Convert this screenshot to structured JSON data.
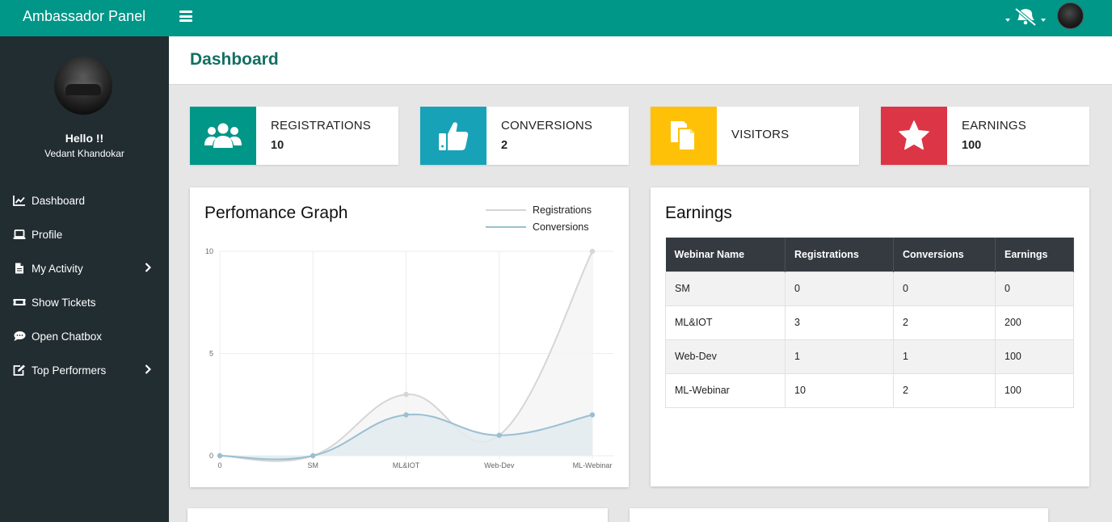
{
  "app": {
    "title": "Ambassador Panel"
  },
  "user": {
    "greeting": "Hello !!",
    "name": "Vedant Khandokar"
  },
  "sidebar": {
    "items": [
      {
        "label": "Dashboard",
        "icon": "chart-line-icon"
      },
      {
        "label": "Profile",
        "icon": "laptop-icon"
      },
      {
        "label": "My Activity",
        "icon": "file-icon",
        "submenu": true
      },
      {
        "label": "Show Tickets",
        "icon": "ticket-icon"
      },
      {
        "label": "Open Chatbox",
        "icon": "chat-icon"
      },
      {
        "label": "Top Performers",
        "icon": "edit-icon",
        "submenu": true
      }
    ]
  },
  "page": {
    "title": "Dashboard"
  },
  "stats": [
    {
      "label": "REGISTRATIONS",
      "value": "10",
      "icon": "users-icon",
      "color": "#009688"
    },
    {
      "label": "CONVERSIONS",
      "value": "2",
      "icon": "thumbs-up-icon",
      "color": "#17a2b8"
    },
    {
      "label": "VISITORS",
      "value": "",
      "icon": "copy-icon",
      "color": "#ffc107"
    },
    {
      "label": "EARNINGS",
      "value": "100",
      "icon": "star-icon",
      "color": "#dc3545"
    }
  ],
  "graph": {
    "title": "Perfomance Graph"
  },
  "chart_data": {
    "type": "line",
    "categories": [
      "0",
      "SM",
      "ML&IOT",
      "Web-Dev",
      "ML-Webinar"
    ],
    "series": [
      {
        "name": "Registrations",
        "values": [
          0,
          0,
          3,
          1,
          10
        ],
        "color": "#d6d6d6",
        "fill": "#f4f4f4"
      },
      {
        "name": "Conversions",
        "values": [
          0,
          0,
          2,
          1,
          2
        ],
        "color": "#9bbfd1",
        "fill": "#e2ebf0"
      }
    ],
    "yticks": [
      "0",
      "5",
      "10"
    ],
    "ylim": [
      0,
      10
    ],
    "grid": true,
    "legend": "top-right"
  },
  "earnings": {
    "title": "Earnings",
    "headers": [
      "Webinar Name",
      "Registrations",
      "Conversions",
      "Earnings"
    ],
    "rows": [
      [
        "SM",
        "0",
        "0",
        "0"
      ],
      [
        "ML&IOT",
        "3",
        "2",
        "200"
      ],
      [
        "Web-Dev",
        "1",
        "1",
        "100"
      ],
      [
        "ML-Webinar",
        "10",
        "2",
        "100"
      ]
    ]
  }
}
